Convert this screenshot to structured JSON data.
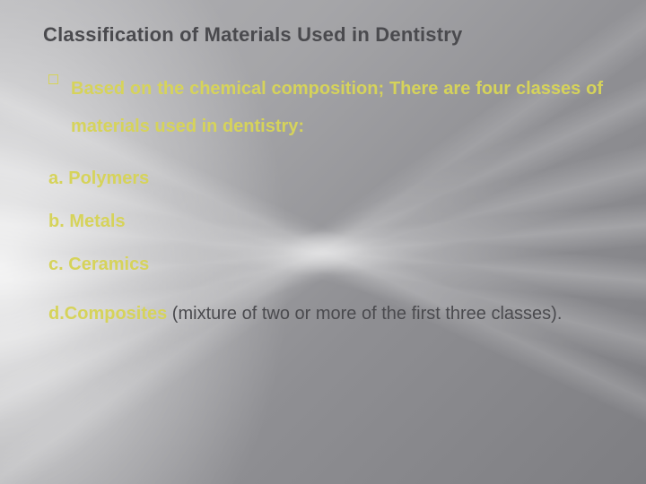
{
  "colors": {
    "accent": "#d6d35a",
    "heading": "#4a4a4e",
    "body": "#4a4a4e",
    "background_start": "#b0b0b3",
    "background_end": "#7e7e82"
  },
  "typography": {
    "title_pt": 22,
    "body_pt": 20,
    "title_weight": 700,
    "bold_weight": 700,
    "regular_weight": 400,
    "font_family": "Arial"
  },
  "slide": {
    "title": "Classification of Materials Used in Dentistry",
    "intro": "Based on the chemical composition; There are four classes of materials used in dentistry:",
    "items": [
      {
        "marker": "a.",
        "label": "Polymers"
      },
      {
        "marker": "b.",
        "label": "Metals"
      },
      {
        "marker": "c.",
        "label": "Ceramics"
      }
    ],
    "last_item": {
      "marker": "d.",
      "label": "Composites",
      "trailing": " (mixture of two or more of the first three classes)."
    }
  }
}
